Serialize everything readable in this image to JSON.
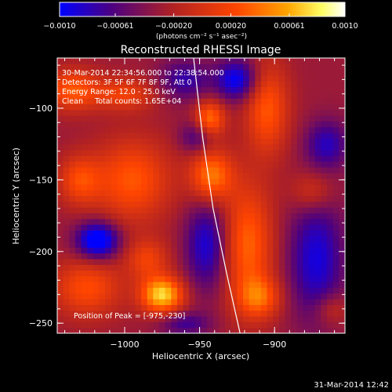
{
  "chart_data": {
    "type": "heatmap",
    "title": "Reconstructed RHESSI Image",
    "xlabel": "Heliocentric X (arcsec)",
    "ylabel": "Heliocentric Y (arcsec)",
    "xlim": [
      -1045,
      -853
    ],
    "ylim": [
      -257,
      -65
    ],
    "x_ticks": [
      {
        "value": -1000,
        "label": "−1000"
      },
      {
        "value": -950,
        "label": "−950"
      },
      {
        "value": -900,
        "label": "−900"
      }
    ],
    "y_ticks": [
      {
        "value": -100,
        "label": "−100"
      },
      {
        "value": -150,
        "label": "−150"
      },
      {
        "value": -200,
        "label": "−200"
      },
      {
        "value": -250,
        "label": "−250"
      }
    ],
    "grid": false,
    "colorbar": {
      "placement": "top",
      "range": [
        -0.001,
        0.001
      ],
      "ticks": [
        {
          "value": -0.001,
          "label": "−0.0010"
        },
        {
          "value": -0.00061,
          "label": "−0.00061"
        },
        {
          "value": -0.0002,
          "label": "−0.00020"
        },
        {
          "value": 0.0002,
          "label": "0.00020"
        },
        {
          "value": 0.00061,
          "label": "0.00061"
        },
        {
          "value": 0.001,
          "label": "0.0010"
        }
      ],
      "units_text": "(photons cm⁻² s⁻¹ asec⁻²)",
      "colors": [
        "#0000ff",
        "#4b0082",
        "#b22222",
        "#ff4500",
        "#ffa500",
        "#ffff66",
        "#ffffff"
      ]
    },
    "info_lines": [
      "30-Mar-2014 22:34:56.000 to 22:38:54.000",
      "Detectors: 3F 5F 6F 7F 8F 9F, Att 0",
      "Energy Range: 12.0 - 25.0 keV",
      "Clean     Total counts: 1.65E+04"
    ],
    "peak_label": "Position of Peak = [-975,-230]",
    "peak": {
      "x": -975,
      "y": -230
    },
    "limb_curve": [
      [
        -954,
        -65
      ],
      [
        -948,
        -120
      ],
      [
        -941,
        -170
      ],
      [
        -932,
        -215
      ],
      [
        -923,
        -257
      ]
    ],
    "sources": [
      {
        "x": -975,
        "y": -230,
        "sx": 10,
        "sy": 9,
        "amp": 0.00105
      },
      {
        "x": -942,
        "y": -147,
        "sx": 10,
        "sy": 13,
        "amp": 0.00075
      },
      {
        "x": -943,
        "y": -107,
        "sx": 7,
        "sy": 9,
        "amp": 0.0007
      },
      {
        "x": -1035,
        "y": -87,
        "sx": 13,
        "sy": 10,
        "amp": 0.0006
      },
      {
        "x": -1000,
        "y": -90,
        "sx": 14,
        "sy": 8,
        "amp": 0.00045
      },
      {
        "x": -995,
        "y": -150,
        "sx": 18,
        "sy": 20,
        "amp": 0.0006
      },
      {
        "x": -1030,
        "y": -150,
        "sx": 10,
        "sy": 12,
        "amp": 0.0005
      },
      {
        "x": -1025,
        "y": -225,
        "sx": 16,
        "sy": 14,
        "amp": 0.00055
      },
      {
        "x": -985,
        "y": -205,
        "sx": 10,
        "sy": 10,
        "amp": 0.00045
      },
      {
        "x": -918,
        "y": -195,
        "sx": 12,
        "sy": 30,
        "amp": 0.00065
      },
      {
        "x": -910,
        "y": -232,
        "sx": 10,
        "sy": 10,
        "amp": 0.00055
      },
      {
        "x": -905,
        "y": -100,
        "sx": 10,
        "sy": 22,
        "amp": 0.0006
      },
      {
        "x": -875,
        "y": -158,
        "sx": 10,
        "sy": 10,
        "amp": 0.00035
      },
      {
        "x": -862,
        "y": -240,
        "sx": 8,
        "sy": 8,
        "amp": 0.0003
      },
      {
        "x": -1018,
        "y": -192,
        "sx": 10,
        "sy": 9,
        "amp": -0.0009
      },
      {
        "x": -945,
        "y": -195,
        "sx": 10,
        "sy": 22,
        "amp": -0.0006
      },
      {
        "x": -960,
        "y": -80,
        "sx": 12,
        "sy": 10,
        "amp": -0.00045
      },
      {
        "x": -925,
        "y": -80,
        "sx": 10,
        "sy": 10,
        "amp": -0.0007
      },
      {
        "x": -872,
        "y": -205,
        "sx": 13,
        "sy": 30,
        "amp": -0.0006
      },
      {
        "x": -865,
        "y": -125,
        "sx": 10,
        "sy": 12,
        "amp": -0.0005
      },
      {
        "x": -952,
        "y": -120,
        "sx": 8,
        "sy": 8,
        "amp": -0.0004
      },
      {
        "x": -960,
        "y": -250,
        "sx": 12,
        "sy": 6,
        "amp": -0.0004
      }
    ],
    "background_level": -0.0003
  },
  "footer_timestamp": "31-Mar-2014 12:42"
}
